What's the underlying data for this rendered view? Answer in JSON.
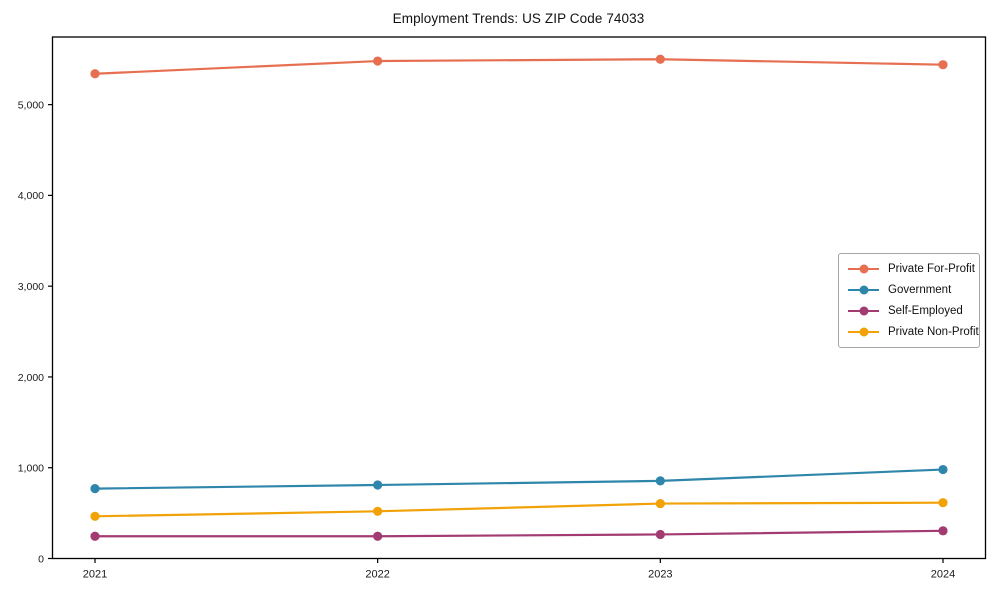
{
  "chart_data": {
    "type": "line",
    "title": "Employment Trends: US ZIP Code 74033",
    "x": [
      2021,
      2022,
      2023,
      2024
    ],
    "xtick_labels": [
      "2021",
      "2022",
      "2023",
      "2024"
    ],
    "ytick_values": [
      0,
      1000,
      2000,
      3000,
      4000,
      5000
    ],
    "ytick_labels": [
      "0",
      "1,000",
      "2,000",
      "3,000",
      "4,000",
      "5,000"
    ],
    "xlabel": "",
    "ylabel": "",
    "ylim": [
      0,
      5745
    ],
    "grid": false,
    "legend_position": "center-right",
    "series": [
      {
        "name": "Private For-Profit",
        "color": "#E76F51",
        "values": [
          5340,
          5480,
          5500,
          5440
        ]
      },
      {
        "name": "Government",
        "color": "#2E86AB",
        "values": [
          770,
          810,
          855,
          980
        ]
      },
      {
        "name": "Self-Employed",
        "color": "#A23B72",
        "values": [
          245,
          245,
          265,
          305
        ]
      },
      {
        "name": "Private Non-Profit",
        "color": "#F1A208",
        "values": [
          465,
          520,
          605,
          615
        ]
      }
    ]
  },
  "colors": {
    "background": "#ffffff",
    "axis": "#000000",
    "tick_text": "#1a1a1a",
    "legend_border": "#a6a6a6"
  }
}
